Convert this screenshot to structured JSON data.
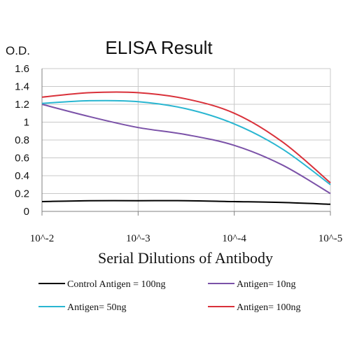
{
  "chart_data": {
    "type": "line",
    "title": "ELISA Result",
    "ylabel": "O.D.",
    "xlabel": "Serial Dilutions of Antibody",
    "categories": [
      "10^-2",
      "10^-3",
      "10^-4",
      "10^-5"
    ],
    "ylim": [
      0,
      1.6
    ],
    "yticks": [
      "0",
      "0.2",
      "0.4",
      "0.6",
      "0.8",
      "1",
      "1.2",
      "1.4",
      "1.6"
    ],
    "grid": true,
    "legend_position": "bottom",
    "series": [
      {
        "name": "Control Antigen = 100ng",
        "color": "#000000",
        "points": [
          [
            0,
            0.11
          ],
          [
            0.5,
            0.12
          ],
          [
            1,
            0.12
          ],
          [
            1.5,
            0.12
          ],
          [
            2,
            0.11
          ],
          [
            2.5,
            0.1
          ],
          [
            3,
            0.08
          ]
        ]
      },
      {
        "name": "Antigen= 10ng",
        "color": "#7b52a8",
        "points": [
          [
            0,
            1.2
          ],
          [
            0.5,
            1.06
          ],
          [
            1,
            0.94
          ],
          [
            1.5,
            0.86
          ],
          [
            2,
            0.74
          ],
          [
            2.5,
            0.52
          ],
          [
            3,
            0.2
          ]
        ]
      },
      {
        "name": "Antigen= 50ng",
        "color": "#29b6d1",
        "points": [
          [
            0,
            1.21
          ],
          [
            0.5,
            1.24
          ],
          [
            1,
            1.23
          ],
          [
            1.5,
            1.15
          ],
          [
            2,
            0.98
          ],
          [
            2.5,
            0.7
          ],
          [
            3,
            0.3
          ]
        ]
      },
      {
        "name": "Antigen= 100ng",
        "color": "#d9313a",
        "points": [
          [
            0,
            1.28
          ],
          [
            0.5,
            1.33
          ],
          [
            1,
            1.33
          ],
          [
            1.5,
            1.26
          ],
          [
            2,
            1.1
          ],
          [
            2.5,
            0.78
          ],
          [
            3,
            0.32
          ]
        ]
      }
    ]
  }
}
